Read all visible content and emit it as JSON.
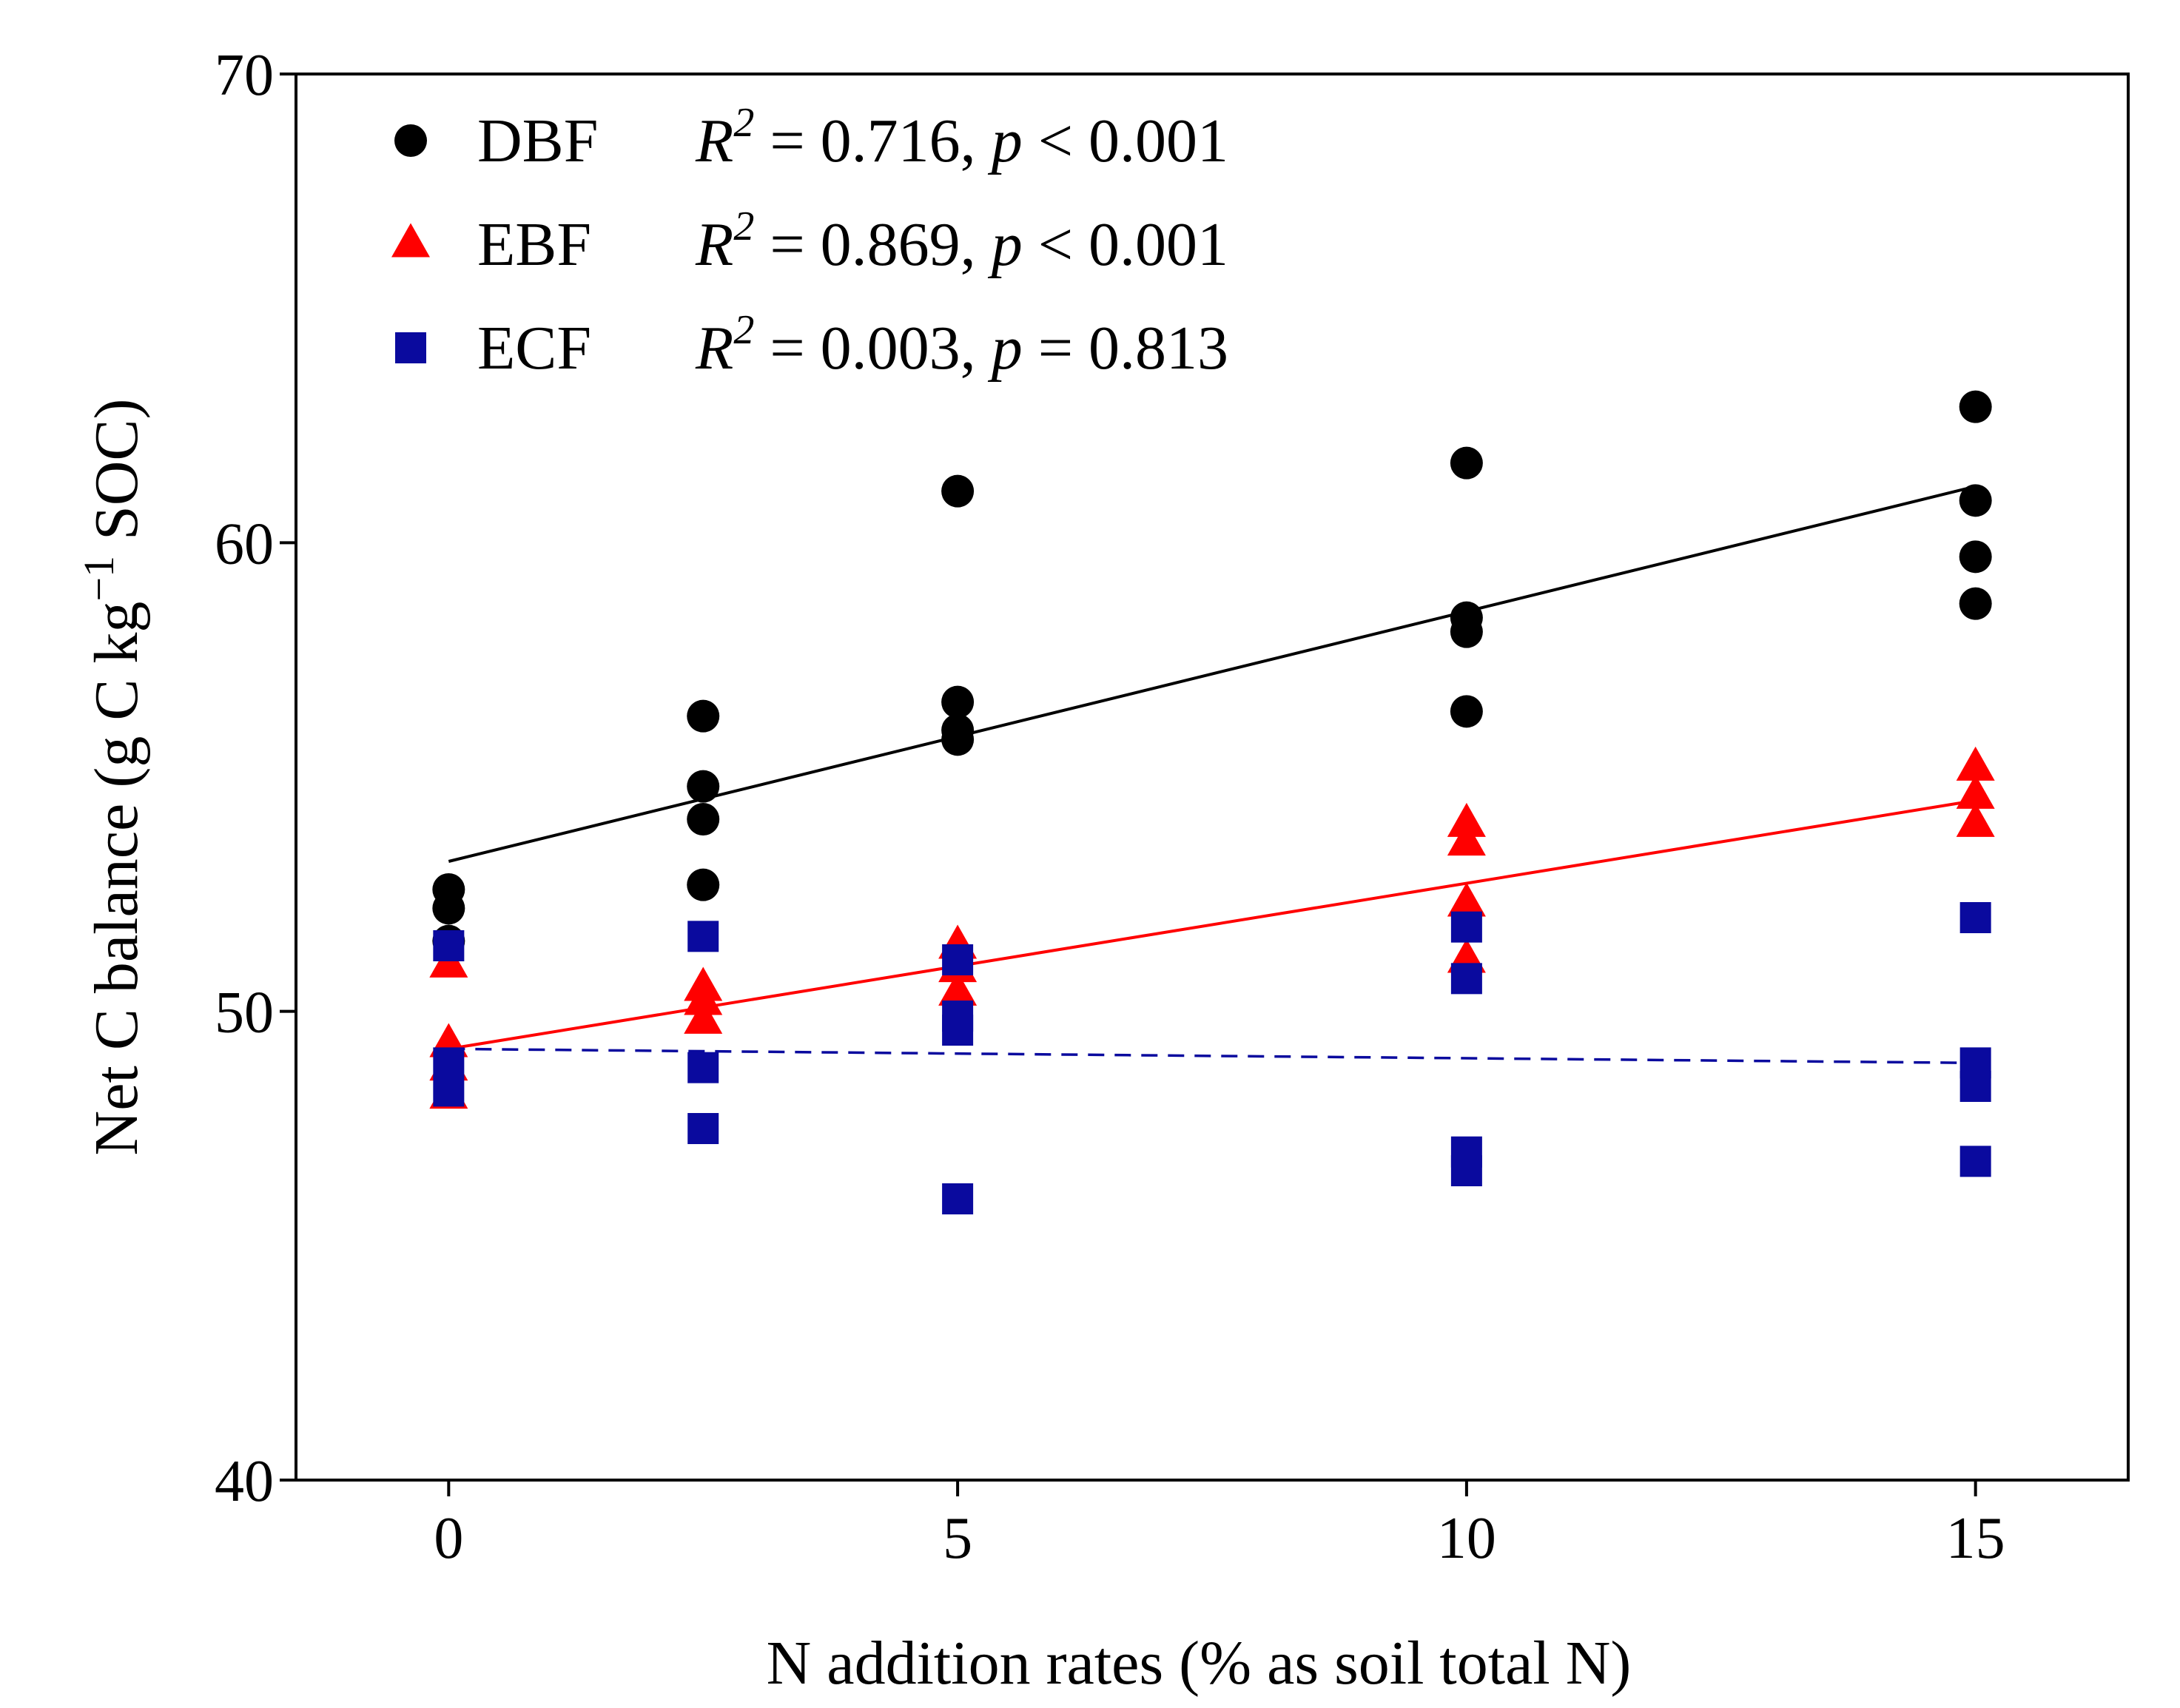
{
  "chart_data": {
    "type": "scatter",
    "xlabel": "N addition rates (% as soil total N)",
    "ylabel": {
      "prefix": "Net C balance (g C kg",
      "superscript": "−1",
      "suffix": " SOC)"
    },
    "xlim": [
      -1.5,
      16.5
    ],
    "ylim": [
      40,
      70
    ],
    "x_ticks": [
      "0",
      "5",
      "10",
      "15"
    ],
    "x_tick_values": [
      0,
      5,
      10,
      15
    ],
    "y_ticks": [
      "40",
      "50",
      "60",
      "70"
    ],
    "y_tick_values": [
      40,
      50,
      60,
      70
    ],
    "grid": false,
    "legend_position": "top-left",
    "series": [
      {
        "name": "DBF",
        "marker": "circle",
        "color": "#000000",
        "stat_label": {
          "r2": "R",
          "r2_sup": "2",
          "r2_rest": " = 0.716, ",
          "p": "p",
          "p_rest": " < 0.001"
        },
        "x": [
          0,
          0,
          0,
          2.5,
          2.5,
          2.5,
          2.5,
          5,
          5,
          5,
          5,
          10,
          10,
          10,
          10,
          15,
          15,
          15,
          15
        ],
        "y": [
          52.6,
          52.2,
          51.5,
          56.3,
          54.8,
          54.1,
          52.7,
          61.1,
          56.6,
          56.0,
          55.8,
          61.7,
          58.4,
          58.1,
          56.4,
          62.9,
          60.9,
          59.7,
          58.7
        ],
        "fit": {
          "x": [
            0,
            15
          ],
          "y": [
            53.2,
            61.2
          ],
          "style": "solid"
        }
      },
      {
        "name": "EBF",
        "marker": "triangle",
        "color": "#ff0000",
        "stat_label": {
          "r2": "R",
          "r2_sup": "2",
          "r2_rest": " = 0.869, ",
          "p": "p",
          "p_rest": " < 0.001"
        },
        "x": [
          0,
          0,
          0,
          0,
          2.5,
          2.5,
          2.5,
          5,
          5,
          5,
          10,
          10,
          10,
          10,
          15,
          15,
          15
        ],
        "y": [
          51.0,
          49.3,
          48.8,
          48.2,
          50.5,
          50.2,
          49.8,
          51.4,
          50.9,
          50.4,
          54.0,
          53.6,
          52.3,
          51.1,
          55.2,
          54.6,
          54.0
        ],
        "fit": {
          "x": [
            0,
            15
          ],
          "y": [
            49.2,
            54.5
          ],
          "style": "solid"
        }
      },
      {
        "name": "ECF",
        "marker": "square",
        "color": "#0a0a9e",
        "stat_label": {
          "r2": "R",
          "r2_sup": "2",
          "r2_rest": " = 0.003, ",
          "p": "p",
          "p_rest": " = 0.813"
        },
        "x": [
          0,
          0,
          0,
          2.5,
          2.5,
          2.5,
          5,
          5,
          5,
          5,
          10,
          10,
          10,
          10,
          15,
          15,
          15,
          15
        ],
        "y": [
          51.4,
          48.9,
          48.3,
          51.6,
          48.8,
          47.5,
          51.1,
          49.9,
          49.6,
          46.0,
          51.8,
          50.7,
          47.0,
          46.6,
          52.0,
          48.9,
          48.4,
          46.8
        ],
        "fit": {
          "x": [
            0,
            15
          ],
          "y": [
            49.2,
            48.9
          ],
          "style": "dashed"
        }
      }
    ]
  }
}
